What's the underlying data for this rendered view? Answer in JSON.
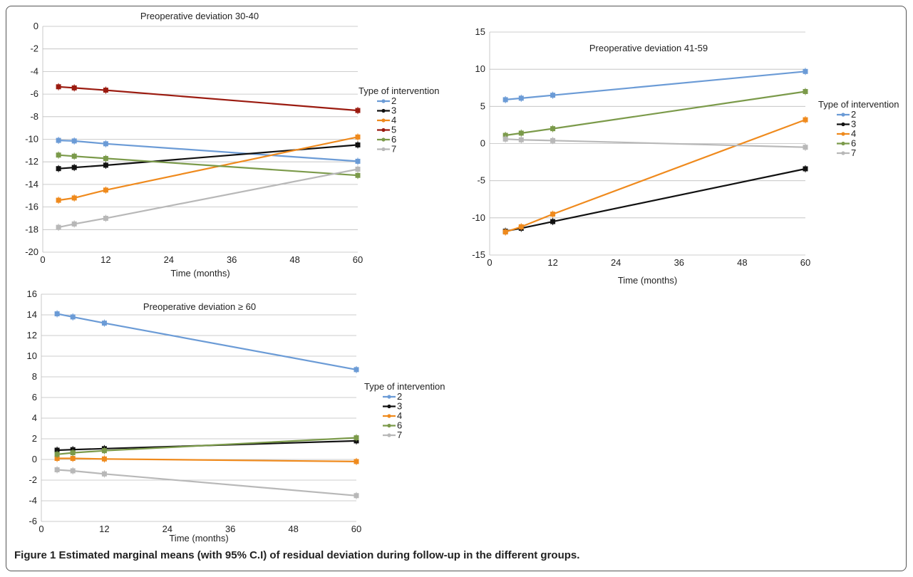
{
  "caption": "Figure 1 Estimated marginal means (with 95% C.I) of residual deviation during follow-up in the different groups.",
  "series_colors": {
    "2": "#6b9bd6",
    "3": "#111111",
    "4": "#ef8a1d",
    "5": "#9b1b10",
    "6": "#7b9a4a",
    "7": "#b8b8b8"
  },
  "chart_data": [
    {
      "type": "line",
      "title": "Preoperative deviation 30-40",
      "xlabel": "Time (months)",
      "ylabel": "",
      "xlim": [
        0,
        60
      ],
      "ylim": [
        -20,
        0
      ],
      "xticks": [
        0,
        12,
        24,
        36,
        48,
        60
      ],
      "yticks": [
        0,
        -2,
        -4,
        -6,
        -8,
        -10,
        -12,
        -14,
        -16,
        -18,
        -20
      ],
      "grid": "horizontal",
      "legend_title": "Type of intervention",
      "legend_placement": "right",
      "x": [
        3,
        6,
        12,
        60
      ],
      "series": [
        {
          "name": "2",
          "values": [
            -10.1,
            -10.15,
            -10.4,
            -11.95
          ]
        },
        {
          "name": "3",
          "values": [
            -12.6,
            -12.5,
            -12.3,
            -10.5
          ]
        },
        {
          "name": "4",
          "values": [
            -15.4,
            -15.2,
            -14.5,
            -9.8
          ]
        },
        {
          "name": "5",
          "values": [
            -5.35,
            -5.45,
            -5.65,
            -7.45
          ]
        },
        {
          "name": "6",
          "values": [
            -11.4,
            -11.5,
            -11.7,
            -13.2
          ]
        },
        {
          "name": "7",
          "values": [
            -17.8,
            -17.5,
            -17.0,
            -12.65
          ]
        }
      ]
    },
    {
      "type": "line",
      "title": "Preoperative deviation 41-59",
      "xlabel": "Time (months)",
      "ylabel": "",
      "xlim": [
        0,
        60
      ],
      "ylim": [
        -15,
        15
      ],
      "xticks": [
        0,
        12,
        24,
        36,
        48,
        60
      ],
      "yticks": [
        15,
        10,
        5,
        0,
        -5,
        -10,
        -15
      ],
      "grid": "horizontal",
      "legend_title": "Type of intervention",
      "legend_placement": "right",
      "x": [
        3,
        6,
        12,
        60
      ],
      "series": [
        {
          "name": "2",
          "values": [
            5.9,
            6.1,
            6.5,
            9.7
          ]
        },
        {
          "name": "3",
          "values": [
            -11.8,
            -11.4,
            -10.5,
            -3.4
          ]
        },
        {
          "name": "4",
          "values": [
            -11.9,
            -11.2,
            -9.5,
            3.2
          ]
        },
        {
          "name": "6",
          "values": [
            1.1,
            1.4,
            2.0,
            7.0
          ]
        },
        {
          "name": "7",
          "values": [
            0.6,
            0.5,
            0.4,
            -0.5
          ]
        }
      ]
    },
    {
      "type": "line",
      "title": "Preoperative deviation ≥ 60",
      "xlabel": "Time (months)",
      "ylabel": "",
      "xlim": [
        0,
        60
      ],
      "ylim": [
        -6,
        16
      ],
      "xticks": [
        0,
        12,
        24,
        36,
        48,
        60
      ],
      "yticks": [
        16,
        14,
        12,
        10,
        8,
        6,
        4,
        2,
        0,
        -2,
        -4,
        -6
      ],
      "grid": "horizontal",
      "legend_title": "Type of intervention",
      "legend_placement": "right",
      "x": [
        3,
        6,
        12,
        60
      ],
      "series": [
        {
          "name": "2",
          "values": [
            14.1,
            13.8,
            13.2,
            8.7
          ]
        },
        {
          "name": "3",
          "values": [
            0.9,
            0.95,
            1.05,
            1.8
          ]
        },
        {
          "name": "4",
          "values": [
            0.1,
            0.1,
            0.05,
            -0.2
          ]
        },
        {
          "name": "6",
          "values": [
            0.5,
            0.65,
            0.85,
            2.1
          ]
        },
        {
          "name": "7",
          "values": [
            -1.0,
            -1.1,
            -1.4,
            -3.5
          ]
        }
      ]
    }
  ]
}
